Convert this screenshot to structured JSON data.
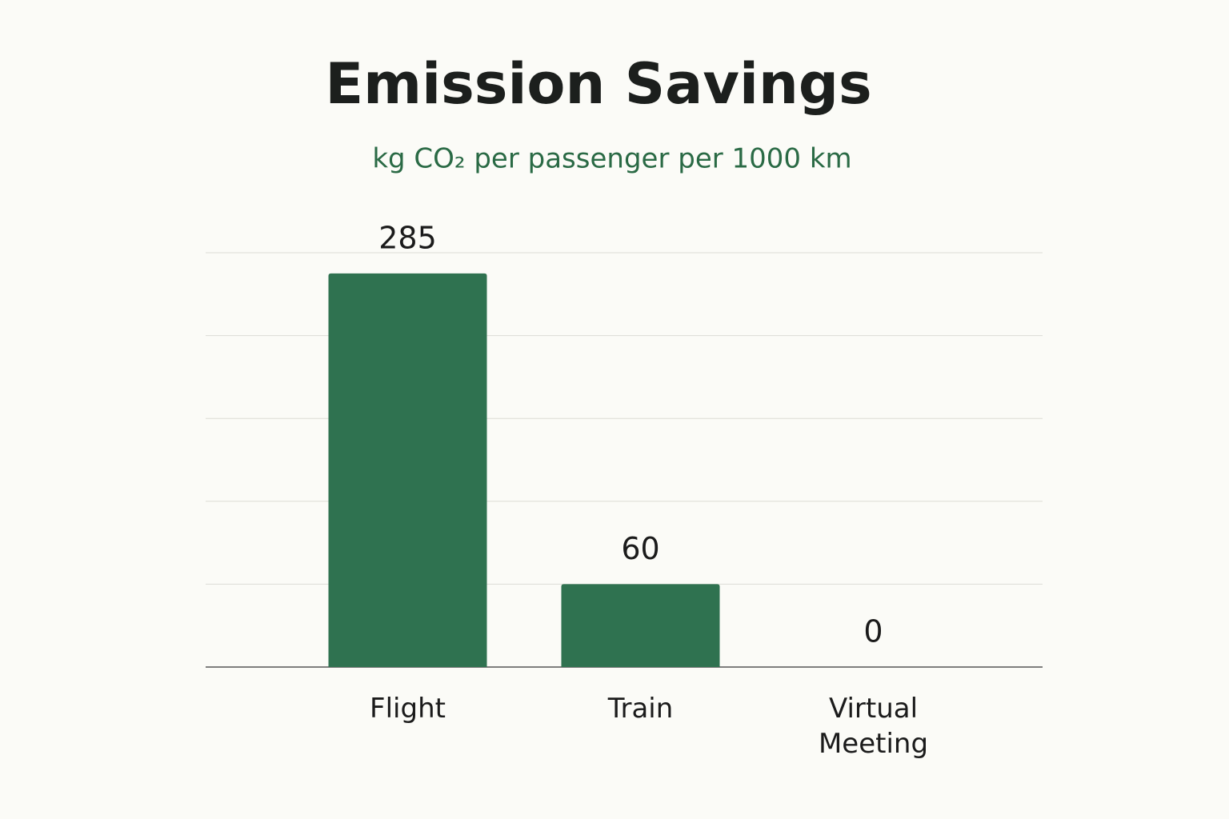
{
  "chart_data": {
    "type": "bar",
    "title": "Emission Savings",
    "subtitle": "kg CO₂ per passenger per 1000 km",
    "categories": [
      "Flight",
      "Train",
      "Virtual Meeting"
    ],
    "values": [
      285,
      60,
      0
    ],
    "color": "#2f7250",
    "ylim": [
      0,
      300
    ],
    "yticks": [
      0,
      60,
      120,
      180,
      240,
      300
    ],
    "grid": true
  }
}
